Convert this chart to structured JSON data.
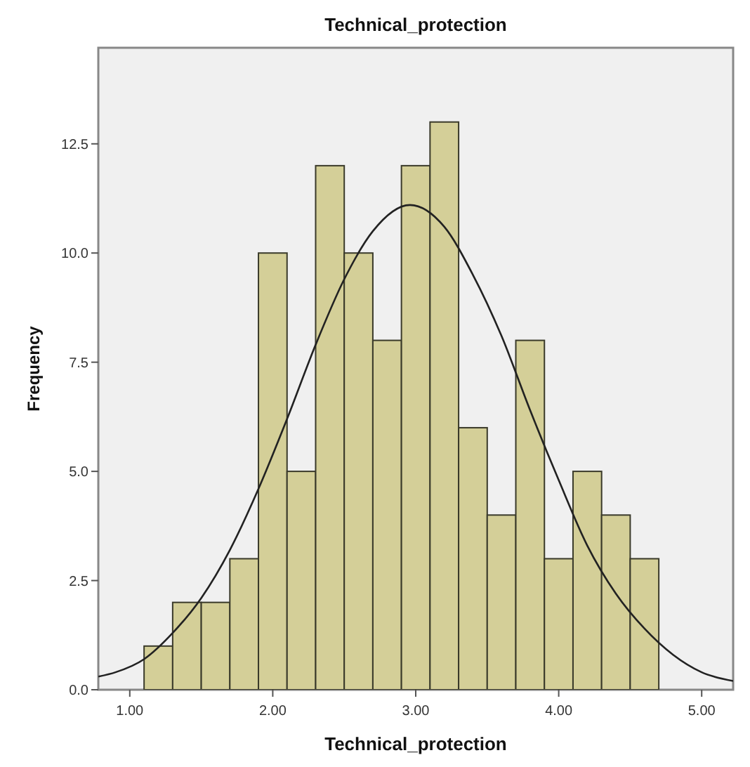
{
  "chart_data": {
    "type": "histogram",
    "title": "Technical_protection",
    "xlabel": "Technical_protection",
    "ylabel": "Frequency",
    "bins": [
      1.1,
      1.3,
      1.5,
      1.7,
      1.9,
      2.1,
      2.3,
      2.5,
      2.7,
      2.9,
      3.1,
      3.3,
      3.5,
      3.7,
      3.9,
      4.1,
      4.3,
      4.5,
      4.7
    ],
    "values": [
      1,
      2,
      2,
      3,
      10,
      5,
      12,
      10,
      8,
      12,
      13,
      6,
      4,
      8,
      3,
      5,
      4,
      3
    ],
    "color": "#d4cf98",
    "xlim": [
      0.78,
      5.22
    ],
    "xticks": [
      {
        "value": 1,
        "label": "1.00"
      },
      {
        "value": 2,
        "label": "2.00"
      },
      {
        "value": 3,
        "label": "3.00"
      },
      {
        "value": 4,
        "label": "4.00"
      },
      {
        "value": 5,
        "label": "5.00"
      }
    ],
    "ylim": [
      0,
      14.7
    ],
    "yticks": [
      {
        "value": 0,
        "label": "0.0"
      },
      {
        "value": 2.5,
        "label": "2.5"
      },
      {
        "value": 5,
        "label": "5.0"
      },
      {
        "value": 7.5,
        "label": "7.5"
      },
      {
        "value": 10,
        "label": "10.0"
      },
      {
        "value": 12.5,
        "label": "12.5"
      }
    ],
    "grid": false,
    "series": [
      {
        "type": "line",
        "color": "#222222",
        "marker": "none",
        "line_style": "solid",
        "x": [
          0.78,
          0.9,
          1.1,
          1.3,
          1.5,
          1.7,
          1.9,
          2.1,
          2.3,
          2.5,
          2.7,
          2.96,
          3.2,
          3.4,
          3.6,
          3.8,
          4.0,
          4.2,
          4.4,
          4.6,
          4.8,
          5.0,
          5.22
        ],
        "values": [
          0.3,
          0.4,
          0.7,
          1.3,
          2.1,
          3.2,
          4.6,
          6.2,
          7.9,
          9.4,
          10.5,
          11.1,
          10.6,
          9.5,
          8.1,
          6.4,
          4.8,
          3.3,
          2.2,
          1.4,
          0.8,
          0.4,
          0.2
        ]
      }
    ]
  }
}
